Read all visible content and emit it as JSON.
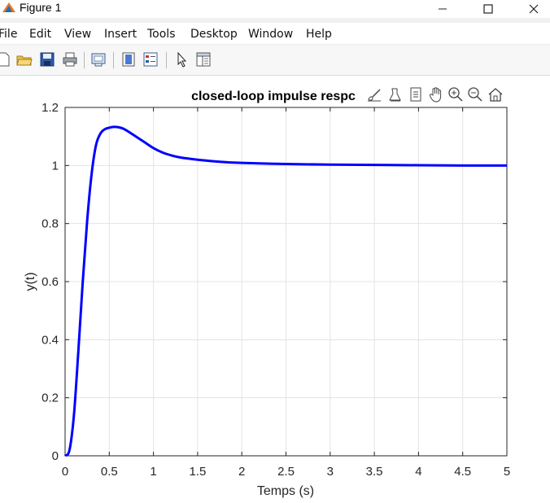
{
  "window": {
    "title": "Figure 1",
    "controls": [
      "minimize",
      "maximize",
      "close"
    ]
  },
  "menubar": {
    "items": [
      "File",
      "Edit",
      "View",
      "Insert",
      "Tools",
      "Desktop",
      "Window",
      "Help"
    ]
  },
  "toolbar": {
    "icons": [
      "new-figure-icon",
      "open-file-icon",
      "save-icon",
      "print-icon",
      "link-plot-icon",
      "colorbar-icon",
      "legend-icon",
      "edit-plot-icon",
      "property-inspector-icon"
    ]
  },
  "axes_toolbar": {
    "icons": [
      "brush-icon",
      "data-tips-icon",
      "export-icon",
      "pan-hand-icon",
      "zoom-in-icon",
      "zoom-out-icon",
      "home-icon"
    ]
  },
  "chart_data": {
    "type": "line",
    "title": "closed-loop impulse respc",
    "xlabel": "Temps (s)",
    "ylabel": "y(t)",
    "xlim": [
      0,
      5
    ],
    "ylim": [
      0,
      1.2
    ],
    "xticks": [
      "0",
      "0.5",
      "1",
      "1.5",
      "2",
      "2.5",
      "3",
      "3.5",
      "4",
      "4.5",
      "5"
    ],
    "yticks": [
      "0",
      "0.2",
      "0.4",
      "0.6",
      "0.8",
      "1",
      "1.2"
    ],
    "grid": true,
    "series": [
      {
        "color": "#0000ff",
        "x": [
          0,
          0.05,
          0.1,
          0.15,
          0.2,
          0.25,
          0.3,
          0.35,
          0.4,
          0.45,
          0.5,
          0.55,
          0.6,
          0.65,
          0.7,
          0.75,
          0.8,
          0.9,
          1.0,
          1.1,
          1.2,
          1.3,
          1.5,
          1.75,
          2.0,
          2.5,
          3.0,
          3.5,
          4.0,
          4.5,
          5.0
        ],
        "y": [
          0,
          0.02,
          0.14,
          0.36,
          0.6,
          0.81,
          0.97,
          1.07,
          1.11,
          1.125,
          1.13,
          1.133,
          1.132,
          1.128,
          1.12,
          1.11,
          1.1,
          1.08,
          1.06,
          1.045,
          1.035,
          1.028,
          1.02,
          1.013,
          1.009,
          1.005,
          1.003,
          1.002,
          1.001,
          1.0,
          1.0
        ]
      }
    ]
  }
}
